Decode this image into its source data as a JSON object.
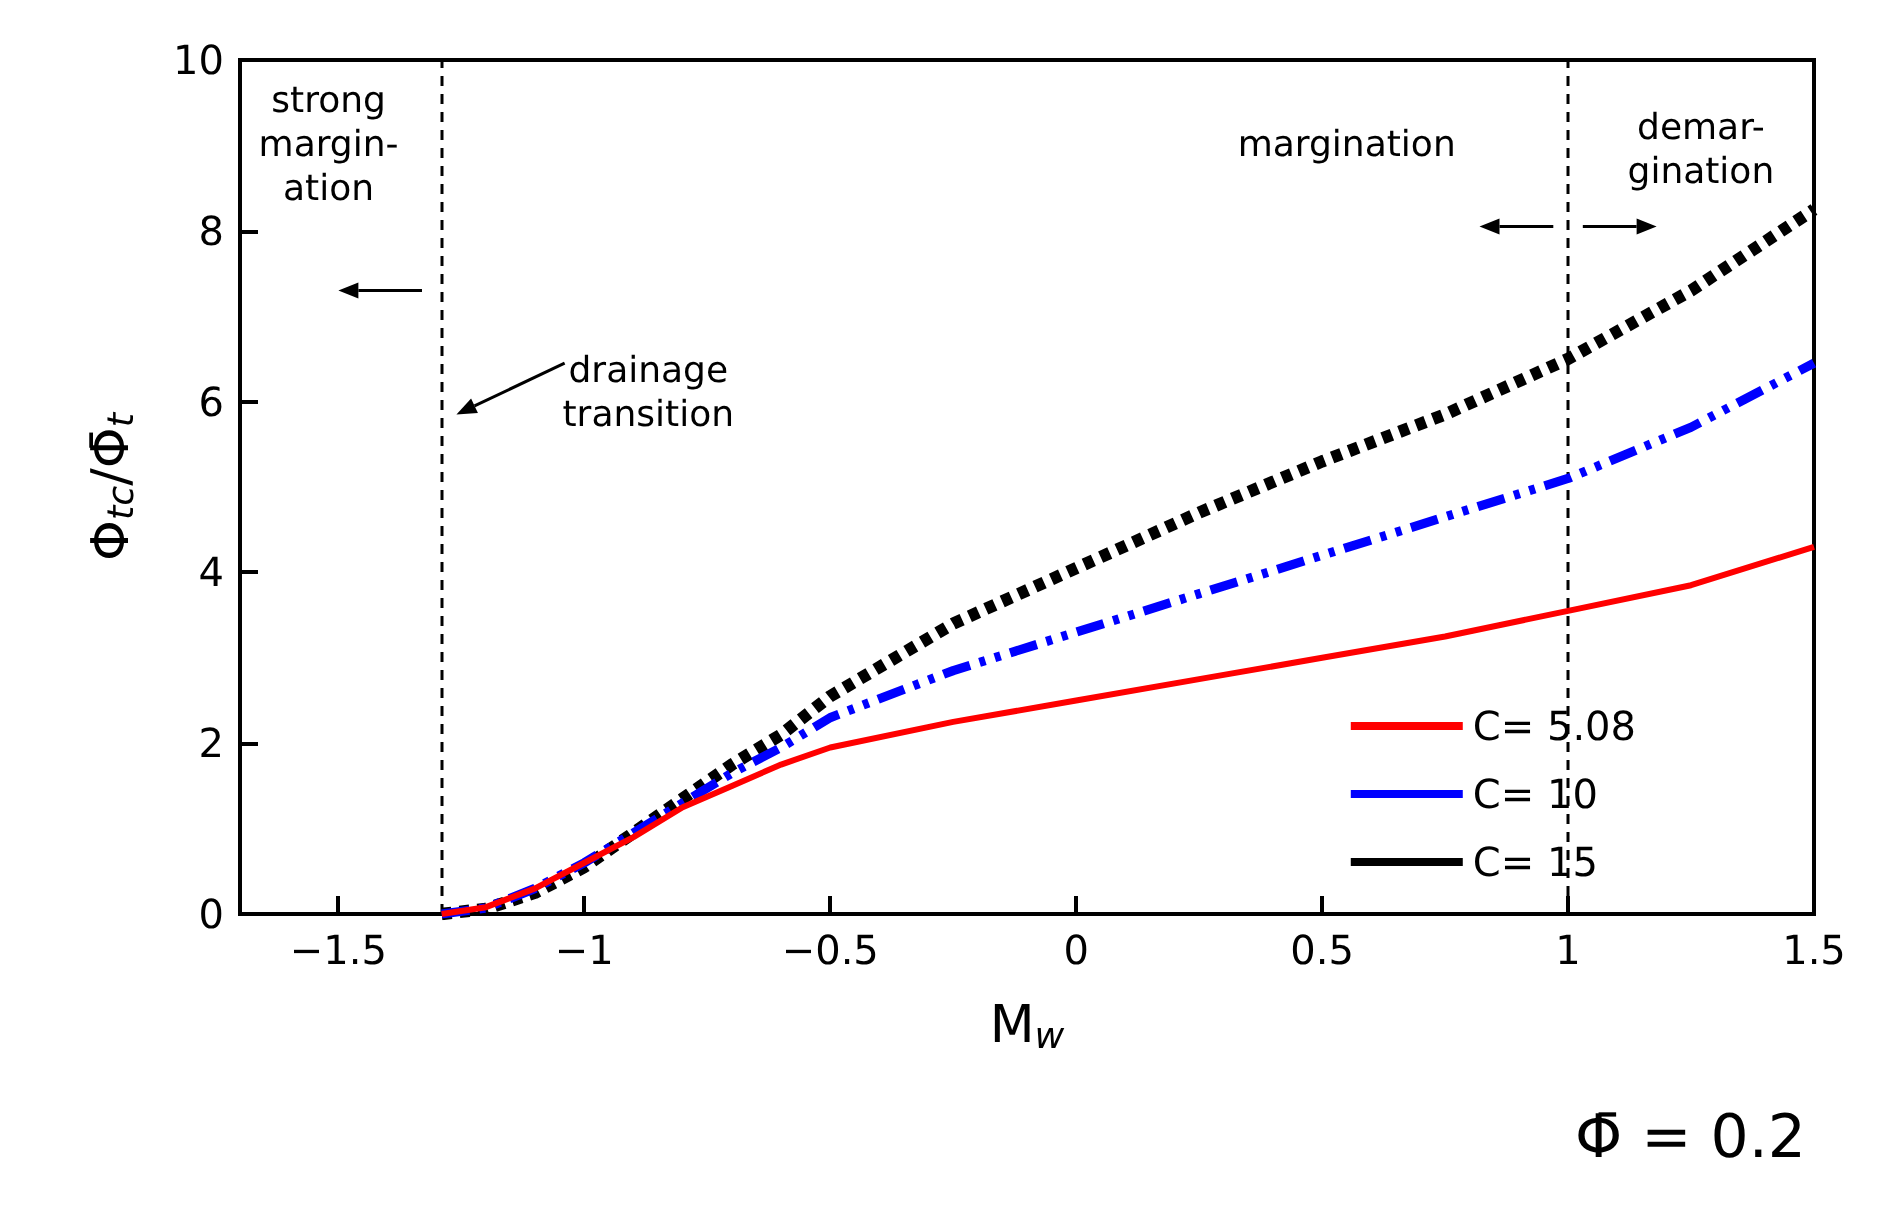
{
  "chart_data": {
    "type": "line",
    "xlabel": "M$_{w}$",
    "ylabel": "Φ$_{tc}$/Φ̄$_{t}$",
    "xlim": [
      -1.7,
      1.5
    ],
    "xticks": [
      {
        "value": -1.5,
        "label": "−1.5"
      },
      {
        "value": -1,
        "label": "−1"
      },
      {
        "value": -0.5,
        "label": "−0.5"
      },
      0,
      0.5,
      1,
      1.5
    ],
    "ylim": [
      0,
      10
    ],
    "yticks": [
      0,
      2,
      4,
      6,
      8,
      10
    ],
    "grid": false,
    "legend": "bottom right",
    "marker": "none",
    "x": [
      -1.29,
      -1.2,
      -1.1,
      -1,
      -0.9,
      -0.8,
      -0.7,
      -0.6,
      -0.5,
      -0.25,
      0,
      0.25,
      0.5,
      0.75,
      1,
      1.25,
      1.5
    ],
    "series": [
      {
        "name": "C= 5.08",
        "color": "#ff0000",
        "line_style": "solid",
        "values": [
          0,
          0.08,
          0.3,
          0.6,
          0.9,
          1.25,
          1.5,
          1.75,
          1.95,
          2.25,
          2.5,
          2.75,
          3.0,
          3.25,
          3.55,
          3.85,
          4.3
        ]
      },
      {
        "name": "C= 10",
        "color": "#0000ff",
        "line_style": "dashed",
        "values": [
          0,
          0.07,
          0.3,
          0.6,
          0.95,
          1.3,
          1.65,
          1.95,
          2.3,
          2.85,
          3.3,
          3.75,
          4.2,
          4.65,
          5.1,
          5.7,
          6.45
        ]
      },
      {
        "name": "C= 15",
        "color": "#000000",
        "line_style": "dotted",
        "values": [
          0,
          0.06,
          0.25,
          0.55,
          0.95,
          1.35,
          1.75,
          2.1,
          2.55,
          3.4,
          4.05,
          4.7,
          5.3,
          5.85,
          6.5,
          7.3,
          8.25
        ]
      }
    ],
    "ref_lines": [
      {
        "axis": "x",
        "value": -1.29,
        "color": "#000000",
        "line_style": "dotted"
      },
      {
        "axis": "x",
        "value": 1,
        "color": "#000000",
        "line_style": "dotted"
      }
    ],
    "annotations": [
      "strong\nmargin-\nation",
      "drainage\ntransition",
      "margination",
      "demar-\ngination",
      "Φ̄ = 0.2"
    ]
  }
}
